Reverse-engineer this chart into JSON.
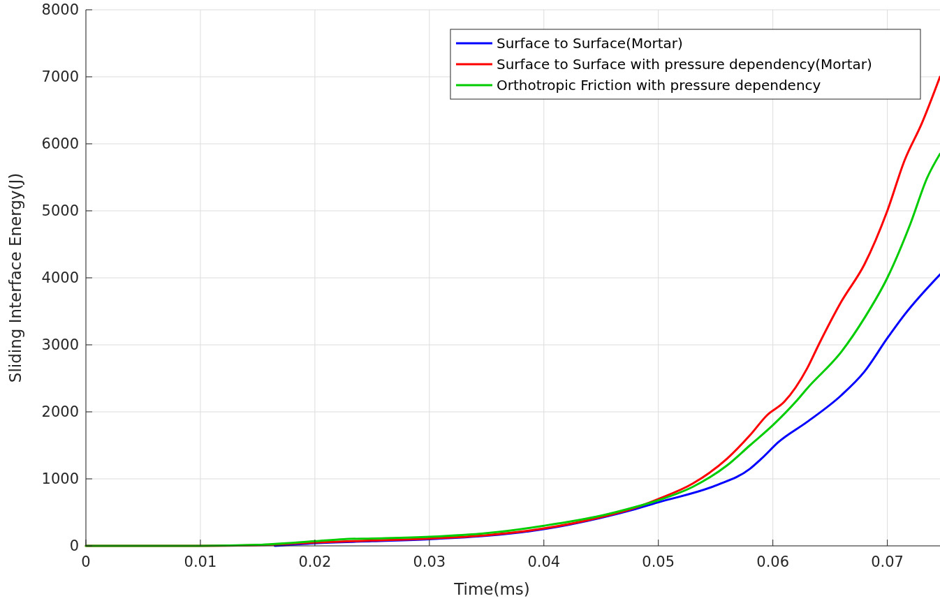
{
  "chart_data": {
    "type": "line",
    "xlabel": "Time(ms)",
    "ylabel": "Sliding Interface Energy(J)",
    "xlim": [
      0,
      0.0746
    ],
    "ylim": [
      0,
      8000
    ],
    "xticks": [
      0,
      0.01,
      0.02,
      0.03,
      0.04,
      0.05,
      0.06,
      0.07
    ],
    "yticks": [
      0,
      1000,
      2000,
      3000,
      4000,
      5000,
      6000,
      7000,
      8000
    ],
    "grid": true,
    "legend": "top right",
    "line_style": "solid",
    "marker": "none",
    "series": [
      {
        "name": "Surface to Surface(Mortar)",
        "color": "#0000ff",
        "x": [
          0.0165,
          0.02,
          0.025,
          0.03,
          0.035,
          0.04,
          0.045,
          0.048,
          0.05,
          0.055,
          0.058,
          0.059,
          0.0605,
          0.063,
          0.066,
          0.068,
          0.07,
          0.0715,
          0.0746
        ],
        "values": [
          0,
          40,
          70,
          100,
          150,
          250,
          420,
          550,
          650,
          900,
          1150,
          1300,
          1550,
          1850,
          2250,
          2600,
          3100,
          3450,
          4050
        ]
      },
      {
        "name": "Surface to Surface with pressure dependency(Mortar)",
        "color": "#ff0000",
        "x": [
          0,
          0.01,
          0.015,
          0.02,
          0.025,
          0.03,
          0.035,
          0.04,
          0.045,
          0.048,
          0.05,
          0.053,
          0.056,
          0.058,
          0.0595,
          0.061,
          0.063,
          0.064,
          0.066,
          0.068,
          0.07,
          0.0715,
          0.073,
          0.0746
        ],
        "values": [
          0,
          0,
          10,
          50,
          80,
          110,
          160,
          260,
          430,
          570,
          700,
          930,
          1300,
          1650,
          1950,
          2150,
          2650,
          3000,
          3650,
          4200,
          5000,
          5750,
          6300,
          7000
        ]
      },
      {
        "name": "Orthotropic Friction with pressure dependency",
        "color": "#00cc00",
        "x": [
          0,
          0.01,
          0.015,
          0.02,
          0.0225,
          0.025,
          0.03,
          0.035,
          0.04,
          0.045,
          0.048,
          0.05,
          0.053,
          0.056,
          0.058,
          0.06,
          0.062,
          0.063,
          0.066,
          0.068,
          0.07,
          0.072,
          0.0735,
          0.0746
        ],
        "values": [
          0,
          0,
          15,
          70,
          100,
          110,
          135,
          190,
          300,
          450,
          580,
          680,
          880,
          1200,
          1500,
          1800,
          2150,
          2350,
          2900,
          3400,
          4000,
          4800,
          5500,
          5850
        ]
      }
    ]
  }
}
